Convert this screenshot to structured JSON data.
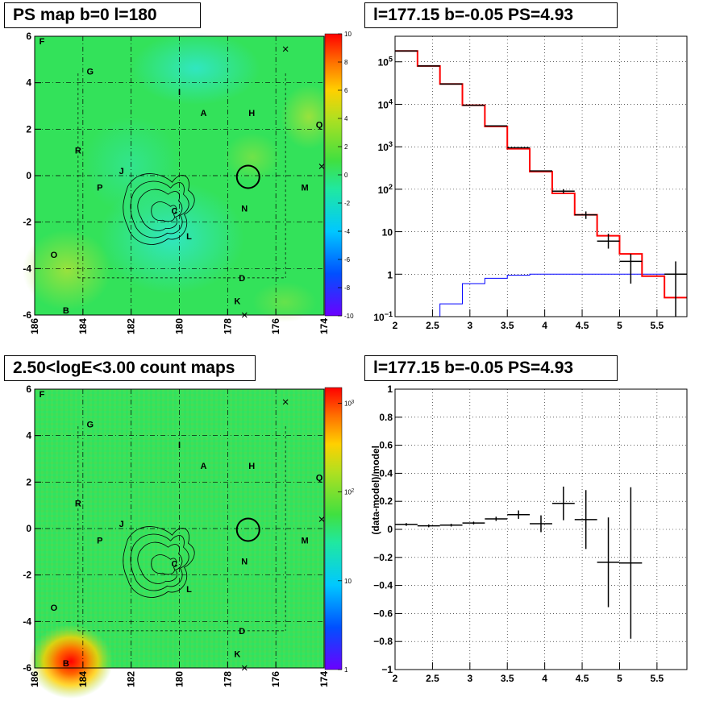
{
  "panels": {
    "top_left_title": "PS map b=0 l=180",
    "top_right_title": "l=177.15 b=-0.05 PS=4.93",
    "bottom_left_title": "2.50<logE<3.00 count maps",
    "bottom_right_title": "l=177.15 b=-0.05 PS=4.93"
  },
  "colors": {
    "map_base": "#33e25a",
    "cyan": "#30e7d2",
    "red_line": "#ff0000",
    "blue_line": "#0000ff"
  },
  "chart_data": [
    {
      "type": "heatmap",
      "title": "PS map b=0 l=180",
      "xticks": [
        "186",
        "184",
        "182",
        "180",
        "178",
        "176",
        "174"
      ],
      "yticks": [
        "6",
        "4",
        "2",
        "0",
        "-2",
        "-4",
        "-6"
      ],
      "xlim": [
        186,
        174
      ],
      "ylim": [
        -6,
        6
      ],
      "colorbar": {
        "ticks": [
          "10",
          "8",
          "6",
          "4",
          "2",
          "0",
          "-2",
          "-4",
          "-6",
          "-8",
          "-10"
        ],
        "range": [
          -10,
          10
        ]
      },
      "source_labels": [
        {
          "t": "F",
          "l": 185.7,
          "b": 5.8
        },
        {
          "t": "G",
          "l": 183.7,
          "b": 4.5
        },
        {
          "t": "I",
          "l": 180.0,
          "b": 3.6
        },
        {
          "t": "A",
          "l": 179.0,
          "b": 2.7
        },
        {
          "t": "H",
          "l": 177.0,
          "b": 2.7
        },
        {
          "t": "Q",
          "l": 174.2,
          "b": 2.2
        },
        {
          "t": "R",
          "l": 184.2,
          "b": 1.1
        },
        {
          "t": "J",
          "l": 182.4,
          "b": 0.2
        },
        {
          "t": "P",
          "l": 183.3,
          "b": -0.5
        },
        {
          "t": "M",
          "l": 174.8,
          "b": -0.5
        },
        {
          "t": "N",
          "l": 177.3,
          "b": -1.4
        },
        {
          "t": "C",
          "l": 180.2,
          "b": -1.5
        },
        {
          "t": "L",
          "l": 179.6,
          "b": -2.6
        },
        {
          "t": "O",
          "l": 185.2,
          "b": -3.4
        },
        {
          "t": "D",
          "l": 177.4,
          "b": -4.4
        },
        {
          "t": "K",
          "l": 177.6,
          "b": -5.4
        },
        {
          "t": "B",
          "l": 184.7,
          "b": -5.8
        }
      ]
    },
    {
      "type": "line",
      "title": "l=177.15 b=-0.05 PS=4.93",
      "log_y": true,
      "xlim": [
        2.0,
        5.9
      ],
      "ylim": [
        0.1,
        400000
      ],
      "xticks": [
        "2",
        "2.5",
        "3",
        "3.5",
        "4",
        "4.5",
        "5",
        "5.5"
      ],
      "yticks": [
        "10^-1",
        "1",
        "10",
        "10^2",
        "10^3",
        "10^4",
        "10^5"
      ],
      "bin_edges": [
        2.0,
        2.3,
        2.6,
        2.9,
        3.2,
        3.5,
        3.8,
        4.1,
        4.4,
        4.7,
        5.0,
        5.3,
        5.6,
        5.9
      ],
      "series": [
        {
          "color": "#ff0000",
          "values": [
            180000,
            80000,
            30000,
            9500,
            3000,
            900,
            260,
            80,
            25,
            8,
            3,
            0.9,
            0.28
          ]
        },
        {
          "color": "#000000",
          "values": [
            180000,
            80000,
            30000,
            9500,
            3100,
            950,
            270,
            90,
            25,
            6,
            2,
            null,
            1
          ],
          "errors_low": [
            null,
            null,
            null,
            null,
            null,
            null,
            null,
            80,
            20,
            4,
            0.6,
            null,
            0.1
          ],
          "errors_high": [
            null,
            null,
            null,
            null,
            null,
            null,
            null,
            100,
            30,
            9,
            3,
            null,
            2
          ]
        },
        {
          "color": "#0000ff",
          "values": [
            0.05,
            0.05,
            0.2,
            0.6,
            0.8,
            0.95,
            1.0,
            1.0,
            1.0,
            1.0,
            1.0,
            1.0,
            1.0
          ]
        }
      ]
    },
    {
      "type": "heatmap",
      "title": "2.50<logE<3.00 count maps",
      "xticks": [
        "186",
        "184",
        "182",
        "180",
        "178",
        "176",
        "174"
      ],
      "yticks": [
        "6",
        "4",
        "2",
        "0",
        "-2",
        "-4",
        "-6"
      ],
      "xlim": [
        186,
        174
      ],
      "ylim": [
        -6,
        6
      ],
      "colorbar": {
        "ticks": [
          "10^3",
          "10^2",
          "10",
          "1"
        ],
        "log": true,
        "range": [
          1,
          1500
        ]
      }
    },
    {
      "type": "scatter",
      "title": "l=177.15 b=-0.05 PS=4.93",
      "ylabel": "(data-model)/model",
      "xlim": [
        2.0,
        5.9
      ],
      "ylim": [
        -1,
        1
      ],
      "xticks": [
        "2",
        "2.5",
        "3",
        "3.5",
        "4",
        "4.5",
        "5",
        "5.5"
      ],
      "yticks": [
        "1",
        "0.8",
        "0.6",
        "0.4",
        "0.2",
        "0",
        "-0.2",
        "-0.4",
        "-0.6",
        "-0.8",
        "-1"
      ],
      "points": [
        {
          "x": 2.15,
          "xerr": 0.15,
          "y": 0.035,
          "yerr": 0.01
        },
        {
          "x": 2.45,
          "xerr": 0.15,
          "y": 0.025,
          "yerr": 0.01
        },
        {
          "x": 2.75,
          "xerr": 0.15,
          "y": 0.03,
          "yerr": 0.01
        },
        {
          "x": 3.05,
          "xerr": 0.15,
          "y": 0.045,
          "yerr": 0.01
        },
        {
          "x": 3.35,
          "xerr": 0.15,
          "y": 0.075,
          "yerr": 0.015
        },
        {
          "x": 3.65,
          "xerr": 0.15,
          "y": 0.105,
          "yerr": 0.03
        },
        {
          "x": 3.95,
          "xerr": 0.15,
          "y": 0.04,
          "yerr": 0.06
        },
        {
          "x": 4.25,
          "xerr": 0.15,
          "y": 0.185,
          "yerr": 0.12
        },
        {
          "x": 4.55,
          "xerr": 0.15,
          "y": 0.07,
          "yerr": 0.21
        },
        {
          "x": 4.85,
          "xerr": 0.15,
          "y": -0.235,
          "yerr": 0.32
        },
        {
          "x": 5.15,
          "xerr": 0.15,
          "y": -0.24,
          "yerr": 0.54
        }
      ]
    }
  ]
}
